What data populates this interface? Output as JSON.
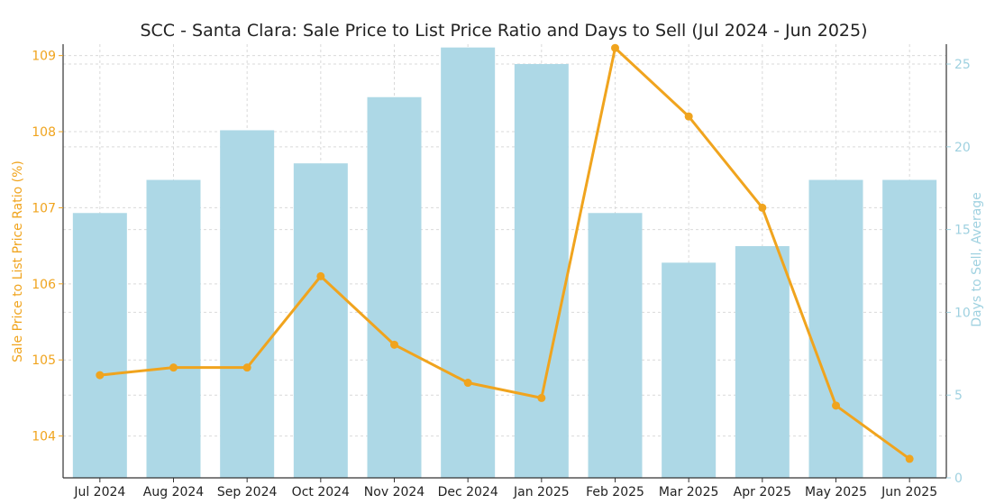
{
  "chart_data": {
    "type": "bar+line",
    "title": "SCC - Santa Clara: Sale Price to List Price Ratio and Days to Sell (Jul 2024 - Jun 2025)",
    "categories": [
      "Jul 2024",
      "Aug 2024",
      "Sep 2024",
      "Oct 2024",
      "Nov 2024",
      "Dec 2024",
      "Jan 2025",
      "Feb 2025",
      "Mar 2025",
      "Apr 2025",
      "May 2025",
      "Jun 2025"
    ],
    "y_left": {
      "label": "Sale Price to List Price Ratio (%)",
      "ylim": [
        103.45,
        109.15
      ],
      "ticks": [
        104,
        105,
        106,
        107,
        108,
        109
      ],
      "color": "#f0a41e"
    },
    "y_right": {
      "label": "Days to Sell, Average",
      "ylim": [
        0,
        26.2
      ],
      "ticks": [
        0,
        5,
        10,
        15,
        20,
        25
      ],
      "color": "#9fd1e0"
    },
    "series": [
      {
        "type": "bar",
        "axis": "right",
        "color": "#add8e6",
        "values": [
          16,
          18,
          21,
          19,
          23,
          26,
          25,
          16,
          13,
          14,
          18,
          18
        ]
      },
      {
        "type": "line",
        "axis": "left",
        "color": "#f0a41e",
        "values": [
          104.8,
          104.9,
          104.9,
          106.1,
          105.2,
          104.7,
          104.5,
          109.1,
          108.2,
          107.0,
          104.4,
          103.7
        ]
      }
    ],
    "grid": true
  }
}
